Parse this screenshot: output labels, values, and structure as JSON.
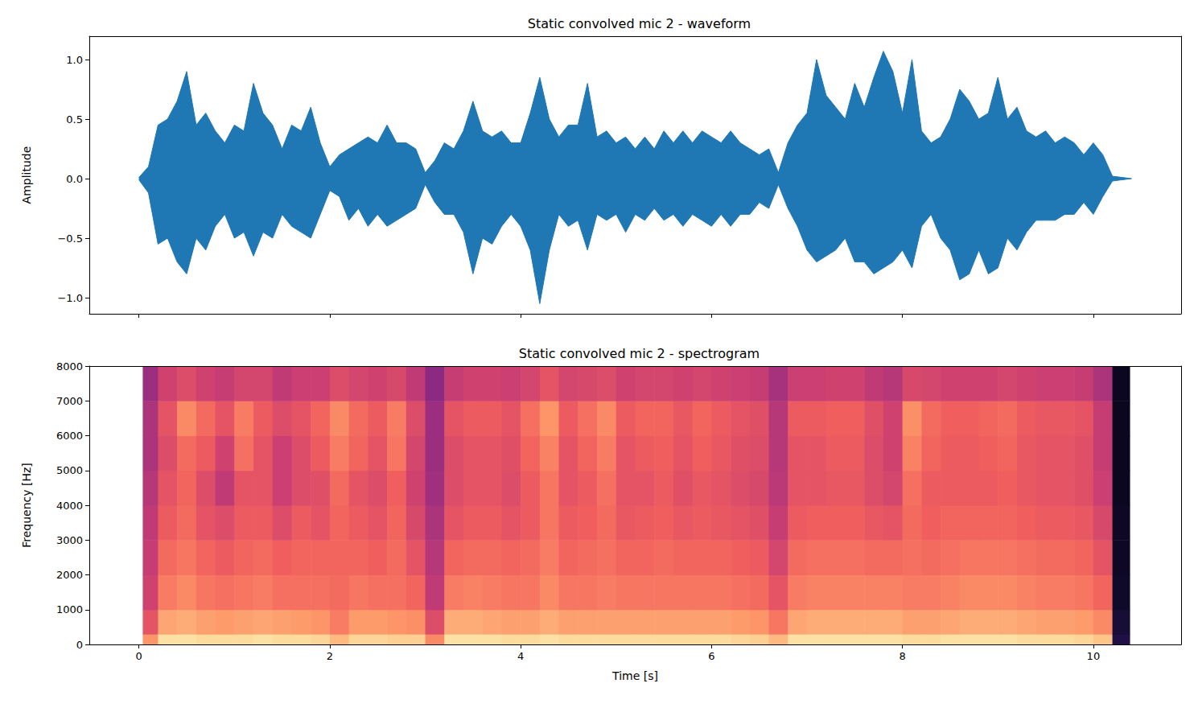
{
  "chart_data": [
    {
      "type": "area",
      "title": "Static convolved mic 2 - waveform",
      "ylabel": "Amplitude",
      "color": "#1f77b4",
      "x": [
        0,
        0.1,
        0.2,
        0.3,
        0.4,
        0.5,
        0.6,
        0.7,
        0.8,
        0.9,
        1.0,
        1.1,
        1.2,
        1.3,
        1.4,
        1.5,
        1.6,
        1.7,
        1.8,
        1.9,
        2.0,
        2.1,
        2.2,
        2.3,
        2.4,
        2.5,
        2.6,
        2.7,
        2.8,
        2.9,
        3.0,
        3.1,
        3.2,
        3.3,
        3.4,
        3.5,
        3.6,
        3.7,
        3.8,
        3.9,
        4.0,
        4.1,
        4.2,
        4.3,
        4.4,
        4.5,
        4.6,
        4.7,
        4.8,
        4.9,
        5.0,
        5.1,
        5.2,
        5.3,
        5.4,
        5.5,
        5.6,
        5.7,
        5.8,
        5.9,
        6.0,
        6.1,
        6.2,
        6.3,
        6.4,
        6.5,
        6.6,
        6.7,
        6.8,
        6.9,
        7.0,
        7.1,
        7.2,
        7.3,
        7.4,
        7.5,
        7.6,
        7.7,
        7.8,
        7.9,
        8.0,
        8.1,
        8.2,
        8.3,
        8.4,
        8.5,
        8.6,
        8.7,
        8.8,
        8.9,
        9.0,
        9.1,
        9.2,
        9.3,
        9.4,
        9.5,
        9.6,
        9.7,
        9.8,
        9.9,
        10.0,
        10.1,
        10.2,
        10.3,
        10.4
      ],
      "upper": [
        0.01,
        0.1,
        0.45,
        0.5,
        0.65,
        0.9,
        0.45,
        0.55,
        0.4,
        0.3,
        0.45,
        0.4,
        0.8,
        0.55,
        0.45,
        0.25,
        0.45,
        0.4,
        0.6,
        0.3,
        0.1,
        0.2,
        0.25,
        0.3,
        0.35,
        0.3,
        0.45,
        0.3,
        0.3,
        0.25,
        0.05,
        0.15,
        0.3,
        0.25,
        0.4,
        0.65,
        0.4,
        0.35,
        0.4,
        0.3,
        0.3,
        0.55,
        0.85,
        0.5,
        0.35,
        0.45,
        0.45,
        0.8,
        0.35,
        0.4,
        0.3,
        0.35,
        0.25,
        0.35,
        0.25,
        0.4,
        0.3,
        0.4,
        0.3,
        0.4,
        0.35,
        0.3,
        0.4,
        0.3,
        0.25,
        0.2,
        0.25,
        0.05,
        0.3,
        0.45,
        0.55,
        1.0,
        0.7,
        0.6,
        0.5,
        0.8,
        0.6,
        0.85,
        1.07,
        0.9,
        0.55,
        1.0,
        0.4,
        0.3,
        0.35,
        0.5,
        0.75,
        0.65,
        0.5,
        0.55,
        0.85,
        0.5,
        0.6,
        0.4,
        0.35,
        0.4,
        0.3,
        0.35,
        0.3,
        0.2,
        0.3,
        0.2,
        0.02,
        0.01,
        0
      ],
      "lower": [
        -0.01,
        -0.12,
        -0.55,
        -0.5,
        -0.7,
        -0.8,
        -0.5,
        -0.6,
        -0.4,
        -0.3,
        -0.5,
        -0.45,
        -0.65,
        -0.45,
        -0.5,
        -0.3,
        -0.4,
        -0.45,
        -0.5,
        -0.3,
        -0.1,
        -0.15,
        -0.35,
        -0.25,
        -0.4,
        -0.3,
        -0.4,
        -0.35,
        -0.3,
        -0.25,
        -0.05,
        -0.2,
        -0.3,
        -0.3,
        -0.45,
        -0.8,
        -0.5,
        -0.55,
        -0.4,
        -0.3,
        -0.4,
        -0.6,
        -1.05,
        -0.6,
        -0.3,
        -0.4,
        -0.35,
        -0.6,
        -0.3,
        -0.35,
        -0.3,
        -0.45,
        -0.3,
        -0.35,
        -0.25,
        -0.35,
        -0.3,
        -0.4,
        -0.3,
        -0.35,
        -0.4,
        -0.3,
        -0.4,
        -0.3,
        -0.3,
        -0.2,
        -0.25,
        -0.05,
        -0.25,
        -0.4,
        -0.6,
        -0.7,
        -0.65,
        -0.6,
        -0.5,
        -0.7,
        -0.7,
        -0.8,
        -0.75,
        -0.7,
        -0.6,
        -0.75,
        -0.4,
        -0.3,
        -0.5,
        -0.6,
        -0.85,
        -0.8,
        -0.6,
        -0.8,
        -0.75,
        -0.5,
        -0.6,
        -0.45,
        -0.35,
        -0.35,
        -0.35,
        -0.3,
        -0.3,
        -0.2,
        -0.3,
        -0.15,
        -0.02,
        -0.01,
        0
      ],
      "xlim": [
        -0.52,
        10.92
      ],
      "xticks": [
        0,
        2,
        4,
        6,
        8,
        10
      ],
      "ylim": [
        -1.135,
        1.196
      ],
      "yticks": [
        {
          "value": -1,
          "label": "−1.0"
        },
        {
          "value": -0.5,
          "label": "−0.5"
        },
        {
          "value": 0,
          "label": "0.0"
        },
        {
          "value": 0.5,
          "label": "0.5"
        },
        {
          "value": 1,
          "label": "1.0"
        }
      ],
      "tick_labels": "y",
      "grid": false
    },
    {
      "type": "heatmap",
      "title": "Static convolved mic 2 - spectrogram",
      "xlabel": "Time [s]",
      "ylabel": "Frequency [Hz]",
      "x_edges": [
        0.04,
        0.2,
        0.4,
        0.6,
        0.8,
        1.0,
        1.2,
        1.4,
        1.6,
        1.8,
        2.0,
        2.2,
        2.4,
        2.6,
        2.8,
        3.0,
        3.2,
        3.4,
        3.6,
        3.8,
        4.0,
        4.2,
        4.4,
        4.6,
        4.8,
        5.0,
        5.2,
        5.4,
        5.6,
        5.8,
        6.0,
        6.2,
        6.4,
        6.6,
        6.8,
        7.0,
        7.2,
        7.4,
        7.6,
        7.8,
        8.0,
        8.2,
        8.4,
        8.6,
        8.8,
        9.0,
        9.2,
        9.4,
        9.6,
        9.8,
        10.0,
        10.2,
        10.38
      ],
      "y_edges": [
        0,
        300,
        1000,
        2000,
        3000,
        4000,
        5000,
        6000,
        7000,
        8000
      ],
      "cells": [
        [
          -28,
          -40,
          -45,
          -47,
          -48,
          -50,
          -52,
          -52,
          -55
        ],
        [
          -15,
          -25,
          -32,
          -35,
          -38,
          -40,
          -42,
          -40,
          -45
        ],
        [
          -15,
          -24,
          -30,
          -33,
          -35,
          -36,
          -35,
          -30,
          -42
        ],
        [
          -16,
          -26,
          -33,
          -36,
          -40,
          -42,
          -38,
          -35,
          -45
        ],
        [
          -16,
          -27,
          -34,
          -38,
          -42,
          -48,
          -45,
          -40,
          -47
        ],
        [
          -16,
          -26,
          -33,
          -36,
          -38,
          -40,
          -34,
          -32,
          -44
        ],
        [
          -15,
          -25,
          -32,
          -35,
          -38,
          -40,
          -40,
          -38,
          -44
        ],
        [
          -16,
          -26,
          -34,
          -37,
          -42,
          -46,
          -46,
          -42,
          -48
        ],
        [
          -16,
          -27,
          -34,
          -36,
          -38,
          -42,
          -42,
          -40,
          -46
        ],
        [
          -17,
          -28,
          -34,
          -36,
          -40,
          -41,
          -38,
          -36,
          -46
        ],
        [
          -22,
          -32,
          -35,
          -36,
          -36,
          -35,
          -32,
          -30,
          -42
        ],
        [
          -17,
          -27,
          -33,
          -36,
          -38,
          -40,
          -36,
          -35,
          -44
        ],
        [
          -17,
          -27,
          -34,
          -37,
          -40,
          -42,
          -40,
          -38,
          -45
        ],
        [
          -18,
          -28,
          -34,
          -35,
          -36,
          -37,
          -33,
          -32,
          -43
        ],
        [
          -18,
          -29,
          -36,
          -40,
          -43,
          -45,
          -44,
          -42,
          -48
        ],
        [
          -30,
          -42,
          -48,
          -50,
          -52,
          -54,
          -55,
          -55,
          -58
        ],
        [
          -15,
          -24,
          -32,
          -36,
          -40,
          -42,
          -42,
          -40,
          -47
        ],
        [
          -15,
          -24,
          -31,
          -35,
          -38,
          -40,
          -40,
          -38,
          -45
        ],
        [
          -15,
          -25,
          -32,
          -35,
          -38,
          -40,
          -40,
          -38,
          -45
        ],
        [
          -16,
          -26,
          -33,
          -36,
          -40,
          -42,
          -41,
          -40,
          -46
        ],
        [
          -16,
          -26,
          -33,
          -35,
          -38,
          -38,
          -36,
          -34,
          -44
        ],
        [
          -15,
          -24,
          -30,
          -32,
          -33,
          -33,
          -31,
          -28,
          -40
        ],
        [
          -16,
          -26,
          -33,
          -36,
          -38,
          -40,
          -40,
          -38,
          -44
        ],
        [
          -16,
          -26,
          -33,
          -35,
          -37,
          -38,
          -36,
          -34,
          -43
        ],
        [
          -16,
          -26,
          -32,
          -34,
          -35,
          -34,
          -32,
          -30,
          -42
        ],
        [
          -16,
          -26,
          -33,
          -36,
          -39,
          -40,
          -40,
          -38,
          -45
        ],
        [
          -16,
          -26,
          -33,
          -36,
          -38,
          -40,
          -38,
          -36,
          -44
        ],
        [
          -16,
          -26,
          -33,
          -35,
          -37,
          -38,
          -37,
          -36,
          -44
        ],
        [
          -16,
          -26,
          -33,
          -36,
          -39,
          -41,
          -40,
          -39,
          -45
        ],
        [
          -16,
          -26,
          -33,
          -36,
          -38,
          -39,
          -37,
          -36,
          -44
        ],
        [
          -16,
          -26,
          -33,
          -36,
          -39,
          -40,
          -39,
          -38,
          -45
        ],
        [
          -17,
          -27,
          -34,
          -37,
          -40,
          -42,
          -41,
          -40,
          -46
        ],
        [
          -18,
          -28,
          -35,
          -38,
          -41,
          -43,
          -42,
          -41,
          -47
        ],
        [
          -22,
          -33,
          -40,
          -44,
          -47,
          -49,
          -50,
          -50,
          -53
        ],
        [
          -15,
          -25,
          -32,
          -35,
          -38,
          -40,
          -40,
          -38,
          -46
        ],
        [
          -15,
          -24,
          -31,
          -34,
          -37,
          -40,
          -40,
          -38,
          -46
        ],
        [
          -15,
          -24,
          -31,
          -34,
          -37,
          -39,
          -38,
          -37,
          -45
        ],
        [
          -15,
          -24,
          -31,
          -34,
          -37,
          -39,
          -38,
          -37,
          -45
        ],
        [
          -15,
          -24,
          -31,
          -35,
          -39,
          -42,
          -42,
          -41,
          -48
        ],
        [
          -15,
          -24,
          -31,
          -35,
          -40,
          -44,
          -45,
          -45,
          -50
        ],
        [
          -16,
          -26,
          -32,
          -34,
          -35,
          -34,
          -31,
          -29,
          -43
        ],
        [
          -16,
          -26,
          -32,
          -35,
          -37,
          -38,
          -36,
          -35,
          -44
        ],
        [
          -15,
          -25,
          -31,
          -34,
          -36,
          -38,
          -38,
          -37,
          -45
        ],
        [
          -15,
          -24,
          -30,
          -33,
          -36,
          -38,
          -38,
          -37,
          -45
        ],
        [
          -15,
          -24,
          -30,
          -33,
          -36,
          -38,
          -37,
          -36,
          -45
        ],
        [
          -15,
          -24,
          -30,
          -33,
          -36,
          -37,
          -36,
          -35,
          -44
        ],
        [
          -16,
          -25,
          -31,
          -34,
          -37,
          -39,
          -39,
          -38,
          -45
        ],
        [
          -16,
          -26,
          -32,
          -35,
          -38,
          -40,
          -40,
          -39,
          -46
        ],
        [
          -16,
          -26,
          -32,
          -35,
          -38,
          -40,
          -40,
          -39,
          -46
        ],
        [
          -17,
          -27,
          -33,
          -36,
          -39,
          -41,
          -41,
          -40,
          -47
        ],
        [
          -20,
          -30,
          -36,
          -40,
          -43,
          -46,
          -47,
          -47,
          -52
        ],
        [
          -80,
          -82,
          -84,
          -85,
          -85,
          -86,
          -86,
          -86,
          -86
        ]
      ],
      "clim": [
        -90,
        -10
      ],
      "xlim": [
        -0.52,
        10.92
      ],
      "xticks": [
        0,
        2,
        4,
        6,
        8,
        10
      ],
      "ylim": [
        0,
        8000
      ],
      "yticks": [
        0,
        1000,
        2000,
        3000,
        4000,
        5000,
        6000,
        7000,
        8000
      ],
      "grid": false
    }
  ]
}
